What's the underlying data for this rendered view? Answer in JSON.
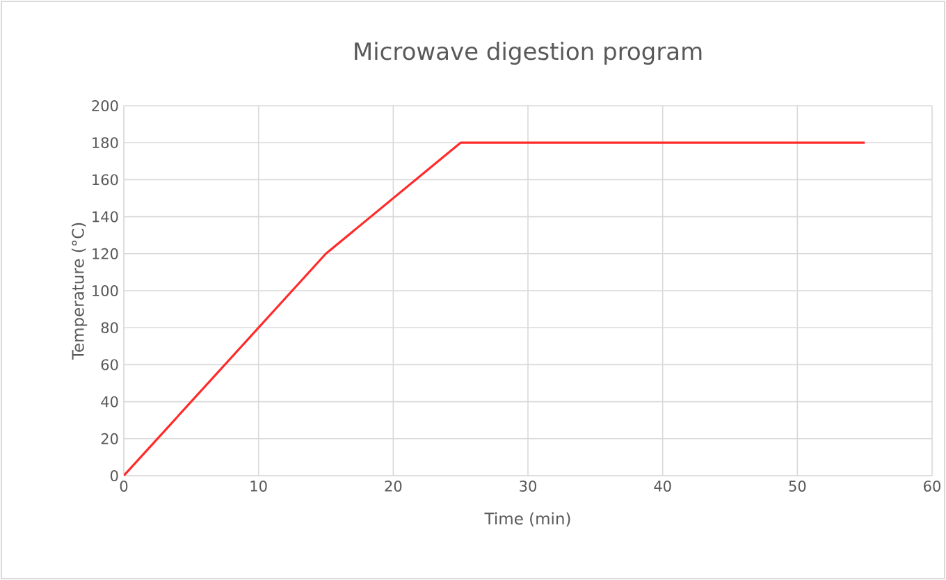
{
  "chart_data": {
    "type": "line",
    "title": "Microwave digestion program",
    "xlabel": "Time (min)",
    "ylabel": "Temperature (°C)",
    "x": [
      0,
      15,
      25,
      55
    ],
    "series": [
      {
        "color": "#ff2b2b",
        "values": [
          0,
          120,
          180,
          180
        ]
      }
    ],
    "xlim": [
      0,
      60
    ],
    "xticks": [
      0,
      10,
      20,
      30,
      40,
      50,
      60
    ],
    "ylim": [
      0,
      200
    ],
    "yticks": [
      0,
      20,
      40,
      60,
      80,
      100,
      120,
      140,
      160,
      180,
      200
    ],
    "grid": true,
    "marker": "none",
    "line_style": "solid"
  }
}
